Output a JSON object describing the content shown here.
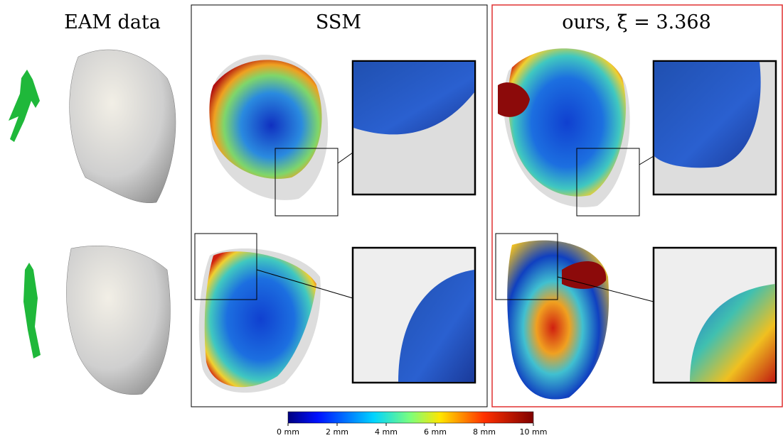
{
  "columns": [
    {
      "title": "EAM data"
    },
    {
      "title": "SSM"
    },
    {
      "title": "ours, ξ̄ = 3.368"
    }
  ],
  "colorbar": {
    "range": [
      0,
      10
    ],
    "ticks": [
      {
        "value": 0,
        "label": "0 mm"
      },
      {
        "value": 2,
        "label": "2 mm"
      },
      {
        "value": 4,
        "label": "4 mm"
      },
      {
        "value": 6,
        "label": "6 mm"
      },
      {
        "value": 8,
        "label": "8 mm"
      },
      {
        "value": 10,
        "label": "10 mm"
      }
    ]
  }
}
